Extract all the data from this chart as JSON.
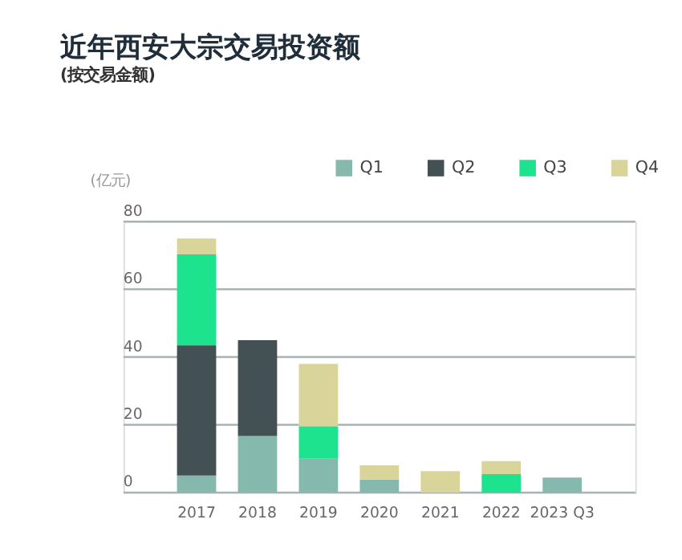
{
  "chart_data": {
    "type": "bar",
    "title": "近年西安大宗交易投资额",
    "subtitle": "(按交易金额)",
    "ylabel": "(亿元)",
    "categories": [
      "2017",
      "2018",
      "2019",
      "2020",
      "2021",
      "2022",
      "2023 Q3"
    ],
    "stacked": true,
    "series": [
      {
        "name": "Q1",
        "color": "#86b9ad",
        "values": [
          5,
          16.7,
          10,
          3.8,
          null,
          null,
          4.4
        ]
      },
      {
        "name": "Q2",
        "color": "#435154",
        "values": [
          38.5,
          28.3,
          null,
          null,
          null,
          null,
          null
        ]
      },
      {
        "name": "Q3",
        "color": "#1de38f",
        "values": [
          26.8,
          null,
          9.6,
          null,
          null,
          5.4,
          null
        ]
      },
      {
        "name": "Q4",
        "color": "#d9d49a",
        "values": [
          4.7,
          null,
          18.4,
          4.2,
          6.3,
          3.9,
          null
        ]
      }
    ],
    "ylim": [
      0,
      80
    ],
    "yticks": [
      0,
      20,
      40,
      60,
      80
    ],
    "grid": "y",
    "legend": "top right"
  }
}
